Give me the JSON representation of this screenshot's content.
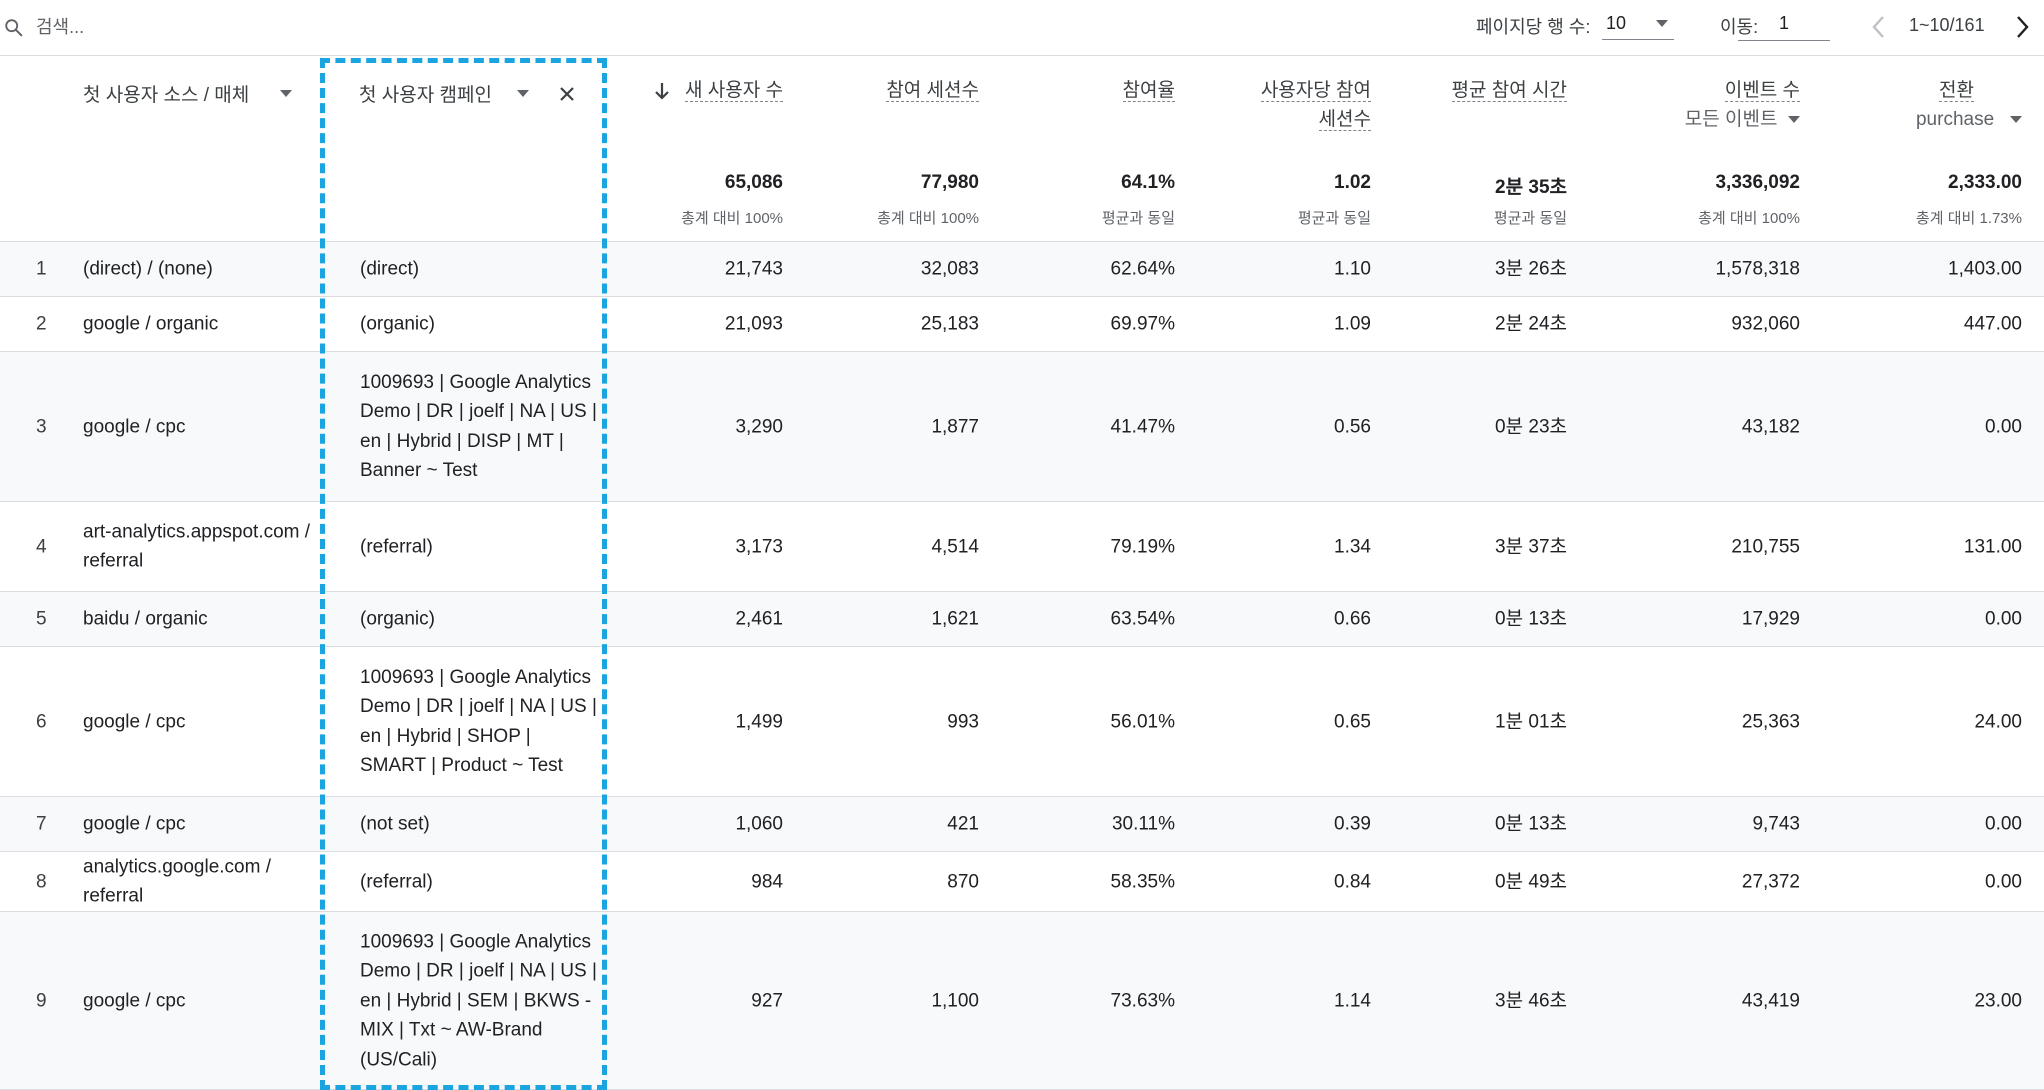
{
  "search": {
    "placeholder": "검색..."
  },
  "pagination": {
    "rows_per_page_label": "페이지당 행 수:",
    "rows_per_page_value": "10",
    "goto_label": "이동:",
    "goto_value": "1",
    "range_text": "1~10/161"
  },
  "columns": {
    "dim1_label": "첫 사용자 소스 / 매체",
    "dim2_label": "첫 사용자 캠페인",
    "new_users": "새 사용자 수",
    "engaged_sessions": "참여 세션수",
    "engagement_rate": "참여율",
    "sessions_per_user_l1": "사용자당 참여",
    "sessions_per_user_l2": "세션수",
    "avg_engagement_time": "평균 참여 시간",
    "event_count": "이벤트 수",
    "event_count_sub": "모든 이벤트",
    "conversions": "전환",
    "conversions_sub": "purchase"
  },
  "totals": {
    "new_users": "65,086",
    "new_users_sub": "총계 대비 100%",
    "engaged_sessions": "77,980",
    "engaged_sessions_sub": "총계 대비 100%",
    "engagement_rate": "64.1%",
    "engagement_rate_sub": "평균과 동일",
    "sessions_per_user": "1.02",
    "sessions_per_user_sub": "평균과 동일",
    "avg_engagement_time": "2분 35초",
    "avg_engagement_time_sub": "평균과 동일",
    "event_count": "3,336,092",
    "event_count_sub": "총계 대비 100%",
    "conversions": "2,333.00",
    "conversions_sub": "총계 대비 1.73%"
  },
  "rows": [
    {
      "idx": "1",
      "source": "(direct) / (none)",
      "campaign": "(direct)",
      "new_users": "21,743",
      "engaged_sessions": "32,083",
      "engagement_rate": "62.64%",
      "sessions_per_user": "1.10",
      "avg_time": "3분 26초",
      "events": "1,578,318",
      "conversions": "1,403.00"
    },
    {
      "idx": "2",
      "source": "google / organic",
      "campaign": "(organic)",
      "new_users": "21,093",
      "engaged_sessions": "25,183",
      "engagement_rate": "69.97%",
      "sessions_per_user": "1.09",
      "avg_time": "2분 24초",
      "events": "932,060",
      "conversions": "447.00"
    },
    {
      "idx": "3",
      "source": "google / cpc",
      "campaign": "1009693 | Google Analytics Demo | DR | joelf | NA | US | en | Hybrid | DISP | MT | Banner ~ Test",
      "new_users": "3,290",
      "engaged_sessions": "1,877",
      "engagement_rate": "41.47%",
      "sessions_per_user": "0.56",
      "avg_time": "0분 23초",
      "events": "43,182",
      "conversions": "0.00"
    },
    {
      "idx": "4",
      "source": "art-analytics.appspot.com / referral",
      "campaign": "(referral)",
      "new_users": "3,173",
      "engaged_sessions": "4,514",
      "engagement_rate": "79.19%",
      "sessions_per_user": "1.34",
      "avg_time": "3분 37초",
      "events": "210,755",
      "conversions": "131.00"
    },
    {
      "idx": "5",
      "source": "baidu / organic",
      "campaign": "(organic)",
      "new_users": "2,461",
      "engaged_sessions": "1,621",
      "engagement_rate": "63.54%",
      "sessions_per_user": "0.66",
      "avg_time": "0분 13초",
      "events": "17,929",
      "conversions": "0.00"
    },
    {
      "idx": "6",
      "source": "google / cpc",
      "campaign": "1009693 | Google Analytics Demo | DR | joelf | NA | US | en | Hybrid | SHOP | SMART | Product ~ Test",
      "new_users": "1,499",
      "engaged_sessions": "993",
      "engagement_rate": "56.01%",
      "sessions_per_user": "0.65",
      "avg_time": "1분 01초",
      "events": "25,363",
      "conversions": "24.00"
    },
    {
      "idx": "7",
      "source": "google / cpc",
      "campaign": "(not set)",
      "new_users": "1,060",
      "engaged_sessions": "421",
      "engagement_rate": "30.11%",
      "sessions_per_user": "0.39",
      "avg_time": "0분 13초",
      "events": "9,743",
      "conversions": "0.00"
    },
    {
      "idx": "8",
      "source": "analytics.google.com / referral",
      "campaign": "(referral)",
      "new_users": "984",
      "engaged_sessions": "870",
      "engagement_rate": "58.35%",
      "sessions_per_user": "0.84",
      "avg_time": "0분 49초",
      "events": "27,372",
      "conversions": "0.00"
    },
    {
      "idx": "9",
      "source": "google / cpc",
      "campaign": "1009693 | Google Analytics Demo | DR | joelf | NA | US | en | Hybrid | SEM | BKWS - MIX | Txt ~ AW-Brand (US/Cali)",
      "new_users": "927",
      "engaged_sessions": "1,100",
      "engagement_rate": "73.63%",
      "sessions_per_user": "1.14",
      "avg_time": "3분 46초",
      "events": "43,419",
      "conversions": "23.00"
    }
  ]
}
